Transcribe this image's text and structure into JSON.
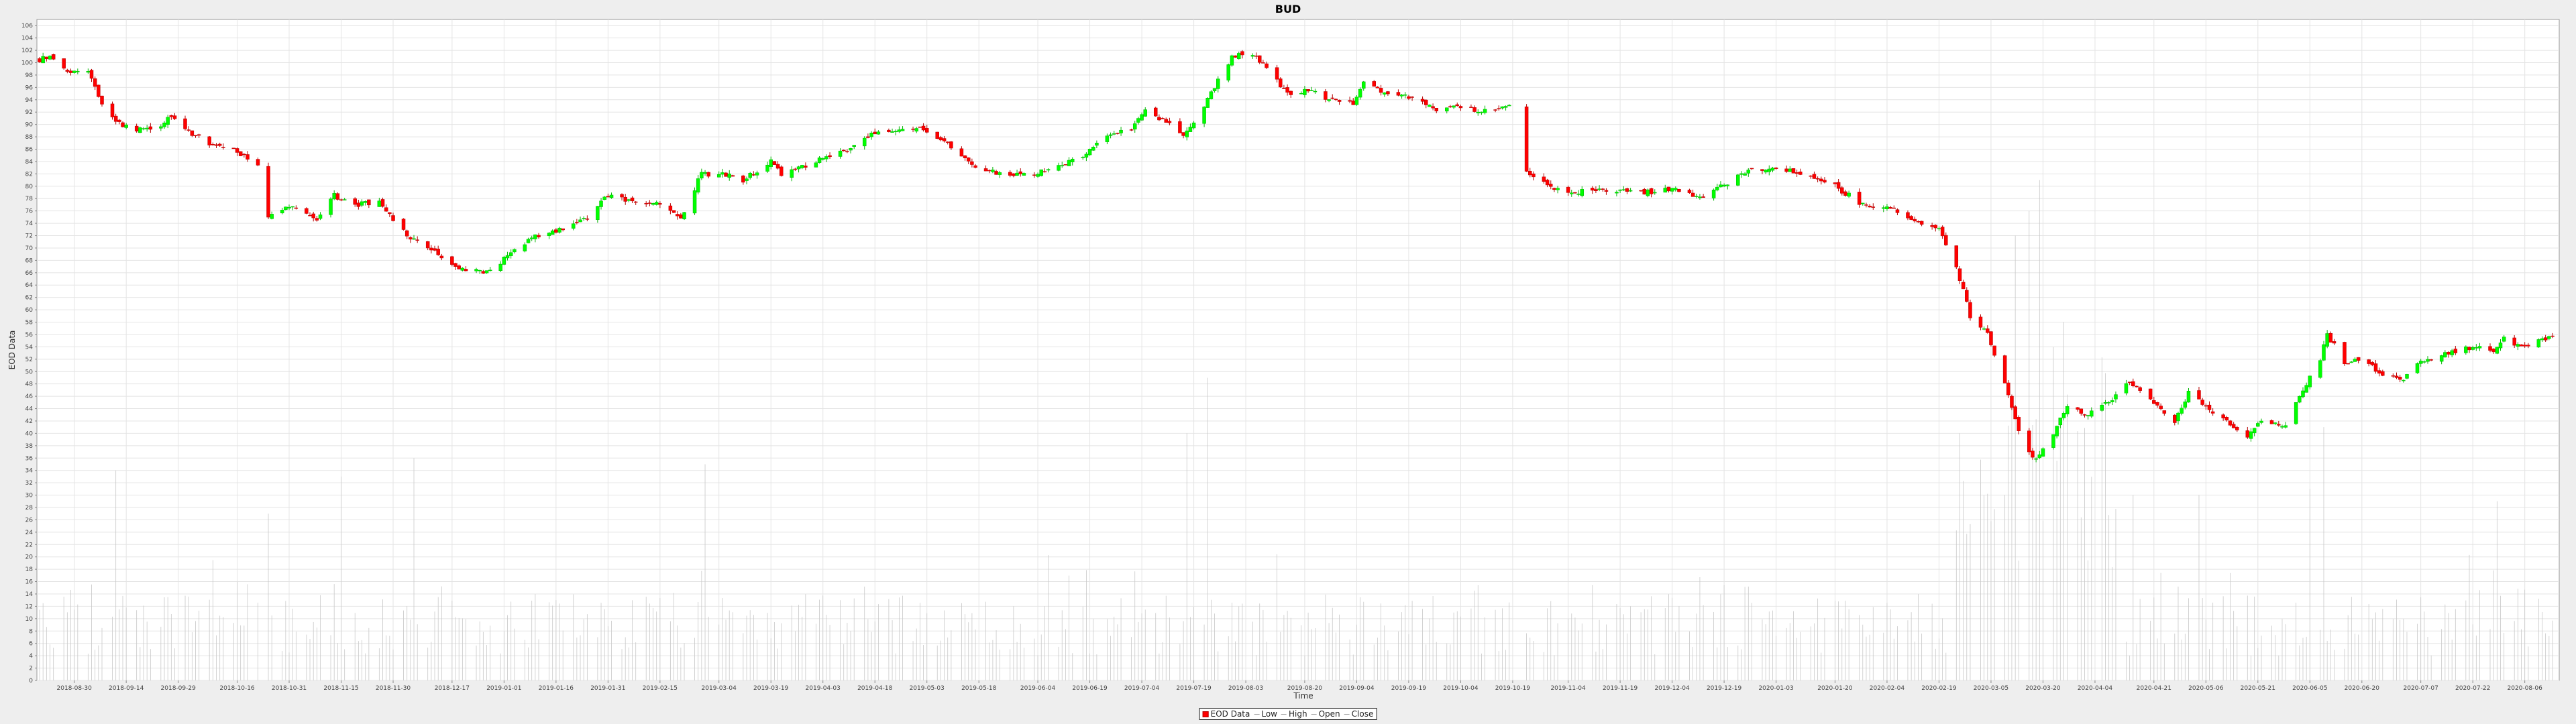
{
  "chart_data": {
    "type": "candlestick",
    "title": "BUD",
    "xlabel": "Time",
    "ylabel": "EOD Data",
    "ylim": [
      0,
      107
    ],
    "y_ticks": [
      0,
      2,
      4,
      6,
      8,
      10,
      12,
      14,
      16,
      18,
      20,
      22,
      24,
      26,
      28,
      30,
      32,
      34,
      36,
      38,
      40,
      42,
      44,
      46,
      48,
      50,
      52,
      54,
      56,
      58,
      60,
      62,
      64,
      66,
      68,
      70,
      72,
      74,
      76,
      78,
      80,
      82,
      84,
      86,
      88,
      90,
      92,
      94,
      96,
      98,
      100,
      102,
      104,
      106
    ],
    "x_range": [
      "2018-08-20",
      "2020-08-14"
    ],
    "x_ticks": [
      "2018-08-30",
      "2018-09-14",
      "2018-09-29",
      "2018-10-16",
      "2018-10-31",
      "2018-11-15",
      "2018-11-30",
      "2018-12-17",
      "2019-01-01",
      "2019-01-16",
      "2019-01-31",
      "2019-02-15",
      "2019-03-04",
      "2019-03-19",
      "2019-04-03",
      "2019-04-18",
      "2019-05-03",
      "2019-05-18",
      "2019-06-04",
      "2019-06-19",
      "2019-07-04",
      "2019-07-19",
      "2019-08-03",
      "2019-08-20",
      "2019-09-04",
      "2019-09-19",
      "2019-10-04",
      "2019-10-19",
      "2019-11-04",
      "2019-11-19",
      "2019-12-04",
      "2019-12-19",
      "2020-01-03",
      "2020-01-20",
      "2020-02-04",
      "2020-02-19",
      "2020-03-05",
      "2020-03-20",
      "2020-04-04",
      "2020-04-21",
      "2020-05-06",
      "2020-05-21",
      "2020-06-05",
      "2020-06-20",
      "2020-07-07",
      "2020-07-22",
      "2020-08-06"
    ],
    "price_anchors": [
      [
        "2018-08-20",
        100.5
      ],
      [
        "2018-08-23",
        101.0
      ],
      [
        "2018-08-28",
        98.5
      ],
      [
        "2018-09-03",
        99.0
      ],
      [
        "2018-09-07",
        93.5
      ],
      [
        "2018-09-11",
        90.5
      ],
      [
        "2018-09-17",
        89.0
      ],
      [
        "2018-09-24",
        90.0
      ],
      [
        "2018-09-27",
        91.5
      ],
      [
        "2018-10-03",
        88.5
      ],
      [
        "2018-10-08",
        87.0
      ],
      [
        "2018-10-15",
        86.0
      ],
      [
        "2018-10-22",
        83.5
      ],
      [
        "2018-10-25",
        75.0
      ],
      [
        "2018-11-01",
        77.0
      ],
      [
        "2018-11-08",
        74.5
      ],
      [
        "2018-11-13",
        78.5
      ],
      [
        "2018-11-19",
        77.0
      ],
      [
        "2018-11-26",
        77.5
      ],
      [
        "2018-12-04",
        72.0
      ],
      [
        "2018-12-12",
        69.5
      ],
      [
        "2018-12-20",
        66.5
      ],
      [
        "2018-12-27",
        66.0
      ],
      [
        "2019-01-04",
        69.5
      ],
      [
        "2019-01-10",
        72.0
      ],
      [
        "2019-01-18",
        73.0
      ],
      [
        "2019-01-25",
        75.0
      ],
      [
        "2019-01-31",
        78.5
      ],
      [
        "2019-02-08",
        77.5
      ],
      [
        "2019-02-15",
        77.0
      ],
      [
        "2019-02-21",
        75.0
      ],
      [
        "2019-02-27",
        82.0
      ],
      [
        "2019-03-05",
        82.0
      ],
      [
        "2019-03-11",
        81.0
      ],
      [
        "2019-03-19",
        84.0
      ],
      [
        "2019-03-22",
        82.0
      ],
      [
        "2019-04-01",
        84.0
      ],
      [
        "2019-04-10",
        86.0
      ],
      [
        "2019-04-17",
        88.5
      ],
      [
        "2019-04-26",
        89.5
      ],
      [
        "2019-05-03",
        89.0
      ],
      [
        "2019-05-10",
        86.5
      ],
      [
        "2019-05-17",
        83.0
      ],
      [
        "2019-05-24",
        82.0
      ],
      [
        "2019-06-03",
        82.0
      ],
      [
        "2019-06-10",
        83.0
      ],
      [
        "2019-06-17",
        85.0
      ],
      [
        "2019-06-24",
        88.0
      ],
      [
        "2019-07-01",
        89.5
      ],
      [
        "2019-07-05",
        92.5
      ],
      [
        "2019-07-12",
        90.0
      ],
      [
        "2019-07-16",
        88.0
      ],
      [
        "2019-07-19",
        90.0
      ],
      [
        "2019-07-25",
        96.0
      ],
      [
        "2019-07-30",
        101.0
      ],
      [
        "2019-08-05",
        101.5
      ],
      [
        "2019-08-09",
        99.0
      ],
      [
        "2019-08-15",
        95.0
      ],
      [
        "2019-08-21",
        95.5
      ],
      [
        "2019-08-27",
        94.0
      ],
      [
        "2019-09-03",
        93.5
      ],
      [
        "2019-09-06",
        97.0
      ],
      [
        "2019-09-13",
        95.0
      ],
      [
        "2019-09-20",
        94.5
      ],
      [
        "2019-09-27",
        92.5
      ],
      [
        "2019-10-03",
        93.0
      ],
      [
        "2019-10-10",
        92.0
      ],
      [
        "2019-10-17",
        93.0
      ],
      [
        "2019-10-21",
        92.0
      ],
      [
        "2019-10-22",
        82.5
      ],
      [
        "2019-10-30",
        80.0
      ],
      [
        "2019-11-05",
        79.0
      ],
      [
        "2019-11-15",
        79.5
      ],
      [
        "2019-11-25",
        79.0
      ],
      [
        "2019-12-05",
        79.5
      ],
      [
        "2019-12-12",
        78.0
      ],
      [
        "2019-12-18",
        80.0
      ],
      [
        "2019-12-26",
        82.5
      ],
      [
        "2020-01-03",
        83.0
      ],
      [
        "2020-01-10",
        82.0
      ],
      [
        "2020-01-20",
        80.0
      ],
      [
        "2020-01-28",
        77.0
      ],
      [
        "2020-02-05",
        76.5
      ],
      [
        "2020-02-12",
        74.5
      ],
      [
        "2020-02-19",
        73.0
      ],
      [
        "2020-02-24",
        67.0
      ],
      [
        "2020-02-28",
        59.0
      ],
      [
        "2020-03-04",
        56.0
      ],
      [
        "2020-03-09",
        48.0
      ],
      [
        "2020-03-12",
        42.0
      ],
      [
        "2020-03-16",
        37.0
      ],
      [
        "2020-03-18",
        35.5
      ],
      [
        "2020-03-23",
        40.0
      ],
      [
        "2020-03-27",
        44.5
      ],
      [
        "2020-04-01",
        43.0
      ],
      [
        "2020-04-08",
        45.0
      ],
      [
        "2020-04-14",
        48.5
      ],
      [
        "2020-04-20",
        45.5
      ],
      [
        "2020-04-27",
        42.0
      ],
      [
        "2020-05-01",
        46.5
      ],
      [
        "2020-05-07",
        44.0
      ],
      [
        "2020-05-13",
        41.5
      ],
      [
        "2020-05-18",
        39.5
      ],
      [
        "2020-05-22",
        42.0
      ],
      [
        "2020-05-29",
        41.0
      ],
      [
        "2020-06-03",
        47.0
      ],
      [
        "2020-06-08",
        52.0
      ],
      [
        "2020-06-10",
        56.0
      ],
      [
        "2020-06-15",
        51.5
      ],
      [
        "2020-06-20",
        52.0
      ],
      [
        "2020-06-26",
        49.5
      ],
      [
        "2020-07-02",
        49.0
      ],
      [
        "2020-07-08",
        52.0
      ],
      [
        "2020-07-15",
        53.0
      ],
      [
        "2020-07-22",
        54.0
      ],
      [
        "2020-07-28",
        53.5
      ],
      [
        "2020-07-31",
        55.5
      ],
      [
        "2020-08-05",
        54.0
      ],
      [
        "2020-08-11",
        55.0
      ],
      [
        "2020-08-14",
        55.5
      ]
    ],
    "gaps": [
      [
        "2018-10-23",
        "2018-10-24"
      ],
      [
        "2019-10-21",
        "2019-10-22"
      ]
    ],
    "volume_peaks": [
      [
        "2018-10-25",
        27
      ],
      [
        "2018-09-11",
        34
      ],
      [
        "2018-11-15",
        33
      ],
      [
        "2018-12-06",
        36
      ],
      [
        "2019-02-28",
        35
      ],
      [
        "2019-07-23",
        49
      ],
      [
        "2019-07-17",
        40
      ],
      [
        "2019-10-22",
        46
      ],
      [
        "2020-02-25",
        40
      ],
      [
        "2020-03-12",
        72
      ],
      [
        "2020-03-16",
        76
      ],
      [
        "2020-03-19",
        81
      ],
      [
        "2020-03-26",
        58
      ],
      [
        "2020-04-15",
        30
      ],
      [
        "2020-05-04",
        30
      ],
      [
        "2020-06-05",
        31
      ],
      [
        "2020-06-09",
        41
      ],
      [
        "2020-07-29",
        29
      ]
    ],
    "legend": [
      "EOD Data",
      "Low",
      "High",
      "Open",
      "Close"
    ],
    "colors": {
      "up": "#00ff00",
      "down": "#ff0000",
      "up_outline": "#00b400",
      "down_outline": "#b40000",
      "volume": "#c8c8c8",
      "grid": "#e4e4e4",
      "plot_bg": "#ffffff",
      "background": "#eeeeee"
    },
    "grid": true,
    "legend_position": "bottom"
  }
}
